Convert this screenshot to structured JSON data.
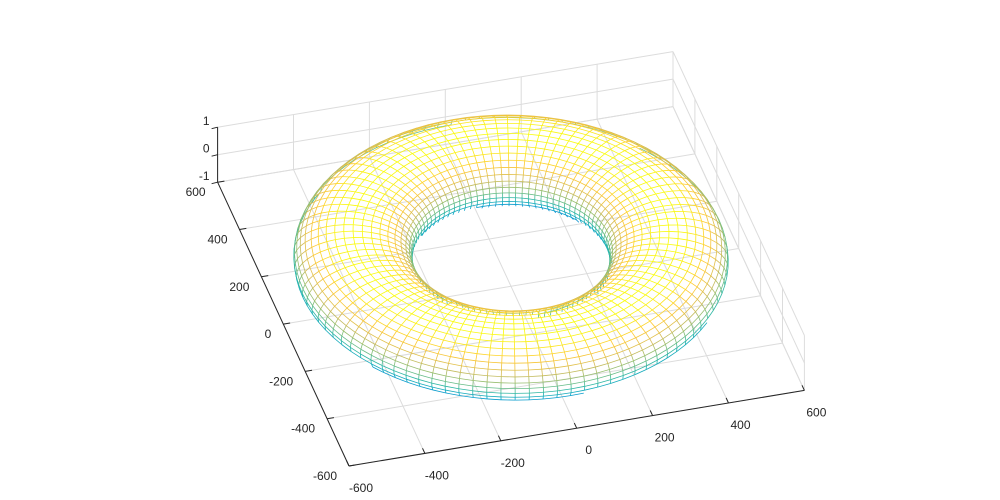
{
  "chart_data": {
    "type": "surface",
    "title": "",
    "xlabel": "",
    "ylabel": "",
    "zlabel": "",
    "shape": "torus",
    "major_radius": 400,
    "minor_radius": 150,
    "z_scale_note": "",
    "xlim": [
      -600,
      600
    ],
    "ylim": [
      -600,
      600
    ],
    "zlim": [
      -1,
      1
    ],
    "x_ticks": [
      {
        "value": -600,
        "label": "-600"
      },
      {
        "value": -400,
        "label": "-400"
      },
      {
        "value": -200,
        "label": "-200"
      },
      {
        "value": 0,
        "label": "0"
      },
      {
        "value": 200,
        "label": "200"
      },
      {
        "value": 400,
        "label": "400"
      },
      {
        "value": 600,
        "label": "600"
      }
    ],
    "y_ticks": [
      {
        "value": -600,
        "label": "-600"
      },
      {
        "value": -400,
        "label": "-400"
      },
      {
        "value": -200,
        "label": "-200"
      },
      {
        "value": 0,
        "label": "0"
      },
      {
        "value": 200,
        "label": "200"
      },
      {
        "value": 400,
        "label": "400"
      },
      {
        "value": 600,
        "label": "600"
      }
    ],
    "z_ticks": [
      {
        "value": -1,
        "label": "-1"
      },
      {
        "value": 0,
        "label": "0"
      },
      {
        "value": 1,
        "label": "1"
      }
    ],
    "grid": true,
    "colormap": "parula",
    "colormap_stops": [
      "#352a87",
      "#0f5cdd",
      "#1481d6",
      "#06a4ca",
      "#2eb7a4",
      "#87bf77",
      "#d1bb59",
      "#fec832",
      "#f9fb0e"
    ],
    "mesh_lines": {
      "u": 96,
      "v": 40
    }
  }
}
